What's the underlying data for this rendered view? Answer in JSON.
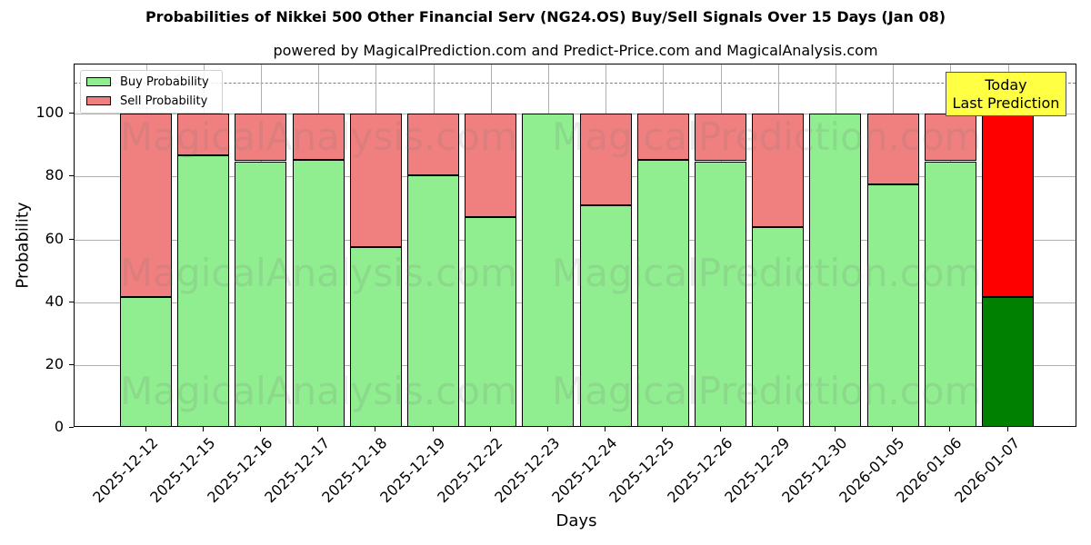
{
  "header": {
    "title": "Probabilities of Nikkei 500 Other Financial Serv (NG24.OS) Buy/Sell Signals Over 15 Days (Jan 08)",
    "subtitle": "powered by MagicalPrediction.com and Predict-Price.com and MagicalAnalysis.com"
  },
  "axes": {
    "xlabel": "Days",
    "ylabel": "Probability",
    "yticks": [
      "0",
      "20",
      "40",
      "60",
      "80",
      "100"
    ]
  },
  "legend": {
    "buy_label": "Buy Probability",
    "sell_label": "Sell Probability"
  },
  "annotation": {
    "line1": "Today",
    "line2": "Last Prediction"
  },
  "watermarks": [
    "MagicalAnalysis.com",
    "MagicalPrediction.com"
  ],
  "colors": {
    "buy": "#90ee90",
    "sell": "#f08080",
    "today_buy": "#008000",
    "today_sell": "#ff0000",
    "annotation_bg": "#ffff44"
  },
  "chart_data": {
    "type": "bar",
    "stacked": true,
    "title": "Probabilities of Nikkei 500 Other Financial Serv (NG24.OS) Buy/Sell Signals Over 15 Days (Jan 08)",
    "subtitle": "powered by MagicalPrediction.com and Predict-Price.com and MagicalAnalysis.com",
    "xlabel": "Days",
    "ylabel": "Probability",
    "ylim": [
      0,
      115
    ],
    "yticks": [
      0,
      20,
      40,
      60,
      80,
      100
    ],
    "grid": true,
    "legend_position": "upper left",
    "reference_line": {
      "y": 110,
      "style": "dashed"
    },
    "categories": [
      "2025-12-12",
      "2025-12-15",
      "2025-12-16",
      "2025-12-17",
      "2025-12-18",
      "2025-12-19",
      "2025-12-22",
      "2025-12-23",
      "2025-12-24",
      "2025-12-25",
      "2025-12-26",
      "2025-12-29",
      "2025-12-30",
      "2026-01-05",
      "2026-01-06",
      "2026-01-07"
    ],
    "series": [
      {
        "name": "Buy Probability",
        "values": [
          41.7,
          86.9,
          84.9,
          85.2,
          57.7,
          80.5,
          67.0,
          100.0,
          71.0,
          85.2,
          84.9,
          63.8,
          100.0,
          77.6,
          84.9,
          41.7
        ]
      },
      {
        "name": "Sell Probability",
        "values": [
          58.3,
          13.1,
          15.1,
          14.8,
          42.3,
          19.5,
          33.0,
          0.0,
          29.0,
          14.8,
          15.1,
          36.2,
          0.0,
          22.4,
          15.1,
          58.3
        ]
      }
    ],
    "annotations": [
      {
        "text": "Today\nLast Prediction",
        "x": "2026-01-07"
      }
    ]
  }
}
